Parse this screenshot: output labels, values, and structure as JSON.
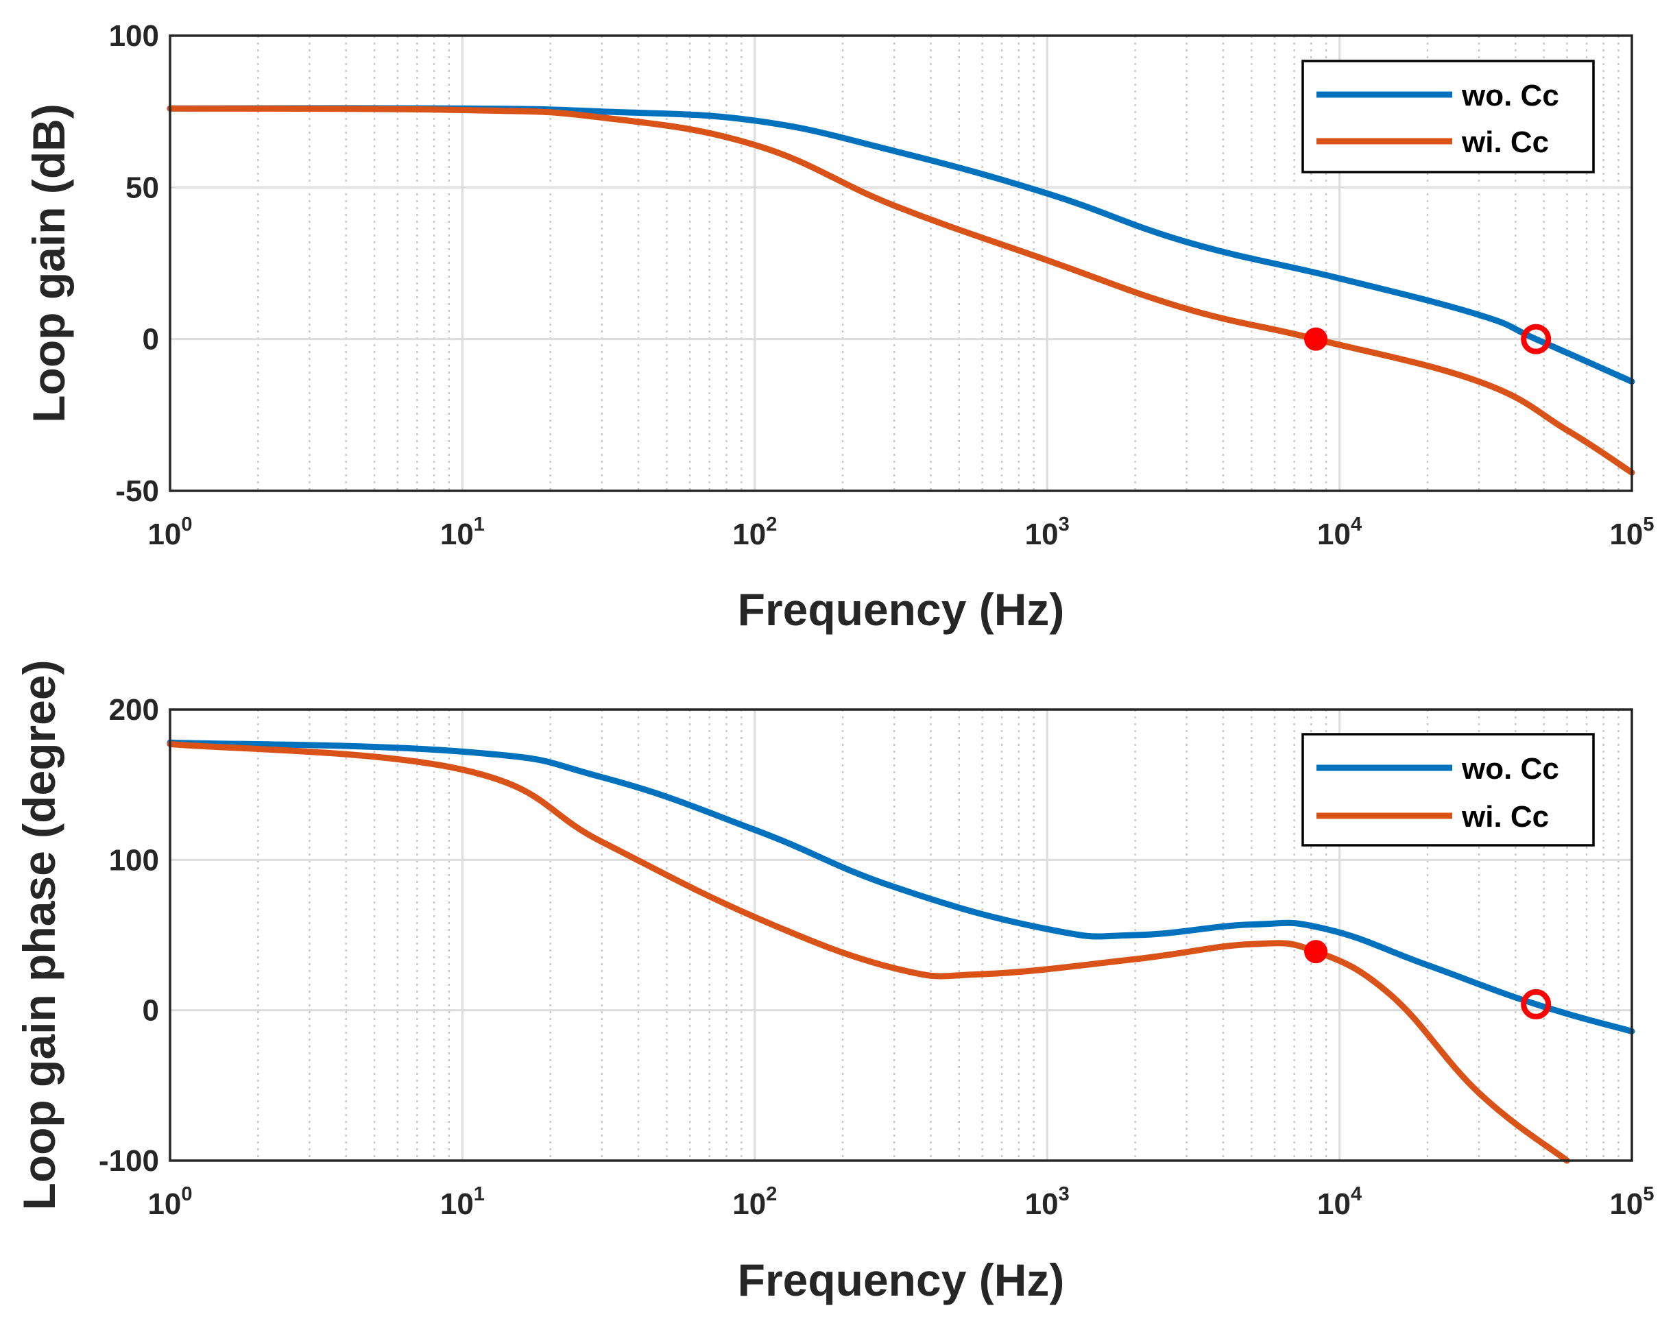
{
  "chart_data": [
    {
      "type": "line",
      "xscale": "log",
      "xlim": [
        1,
        100000
      ],
      "ylim": [
        -50,
        100
      ],
      "yticks": [
        -50,
        0,
        50,
        100
      ],
      "xtick_base": "10",
      "xtick_exponents": [
        "0",
        "1",
        "2",
        "3",
        "4",
        "5"
      ],
      "xlabel": "Frequency (Hz)",
      "ylabel": "Loop gain (dB)",
      "grid": true,
      "legend_position": "top-right",
      "series": [
        {
          "name": "wo. Cc",
          "color": "#0072BD",
          "x": [
            1,
            10,
            30,
            100,
            300,
            1000,
            3000,
            10000,
            30000,
            47000,
            100000
          ],
          "y": [
            76,
            76,
            75,
            72,
            62,
            48,
            32,
            20,
            8,
            0,
            -14
          ]
        },
        {
          "name": "wi. Cc",
          "color": "#D95319",
          "x": [
            1,
            10,
            30,
            100,
            300,
            1000,
            3000,
            8300,
            30000,
            60000,
            100000
          ],
          "y": [
            76,
            75.5,
            73,
            64,
            44,
            26,
            10,
            0,
            -14,
            -30,
            -44
          ]
        }
      ],
      "markers": [
        {
          "series": "wi. Cc",
          "x": 8300,
          "y": 0,
          "style": "filled",
          "color": "#FF0000"
        },
        {
          "series": "wo. Cc",
          "x": 47000,
          "y": 0,
          "style": "open",
          "color": "#FF0000"
        }
      ]
    },
    {
      "type": "line",
      "xscale": "log",
      "xlim": [
        1,
        100000
      ],
      "ylim": [
        -100,
        200
      ],
      "yticks": [
        -100,
        0,
        100,
        200
      ],
      "xtick_base": "10",
      "xtick_exponents": [
        "0",
        "1",
        "2",
        "3",
        "4",
        "5"
      ],
      "xlabel": "Frequency (Hz)",
      "ylabel": "Loop gain phase (degree)",
      "grid": true,
      "legend_position": "top-right",
      "series": [
        {
          "name": "wo. Cc",
          "color": "#0072BD",
          "x": [
            1,
            10,
            30,
            100,
            300,
            1000,
            2000,
            5000,
            9000,
            20000,
            47000,
            100000
          ],
          "y": [
            178,
            172,
            155,
            120,
            82,
            54,
            50,
            57,
            54,
            30,
            4,
            -14
          ],
          "smooth": 0.22
        },
        {
          "name": "wi. Cc",
          "color": "#D95319",
          "x": [
            1,
            10,
            30,
            100,
            300,
            600,
            2000,
            5000,
            8300,
            15000,
            30000,
            60000
          ],
          "y": [
            177,
            160,
            112,
            62,
            28,
            24,
            34,
            44,
            39,
            10,
            -55,
            -100
          ],
          "smooth": 0.2
        }
      ],
      "markers": [
        {
          "series": "wi. Cc",
          "x": 8300,
          "y": 39,
          "style": "filled",
          "color": "#FF0000"
        },
        {
          "series": "wo. Cc",
          "x": 47000,
          "y": 4,
          "style": "open",
          "color": "#FF0000"
        }
      ]
    }
  ]
}
